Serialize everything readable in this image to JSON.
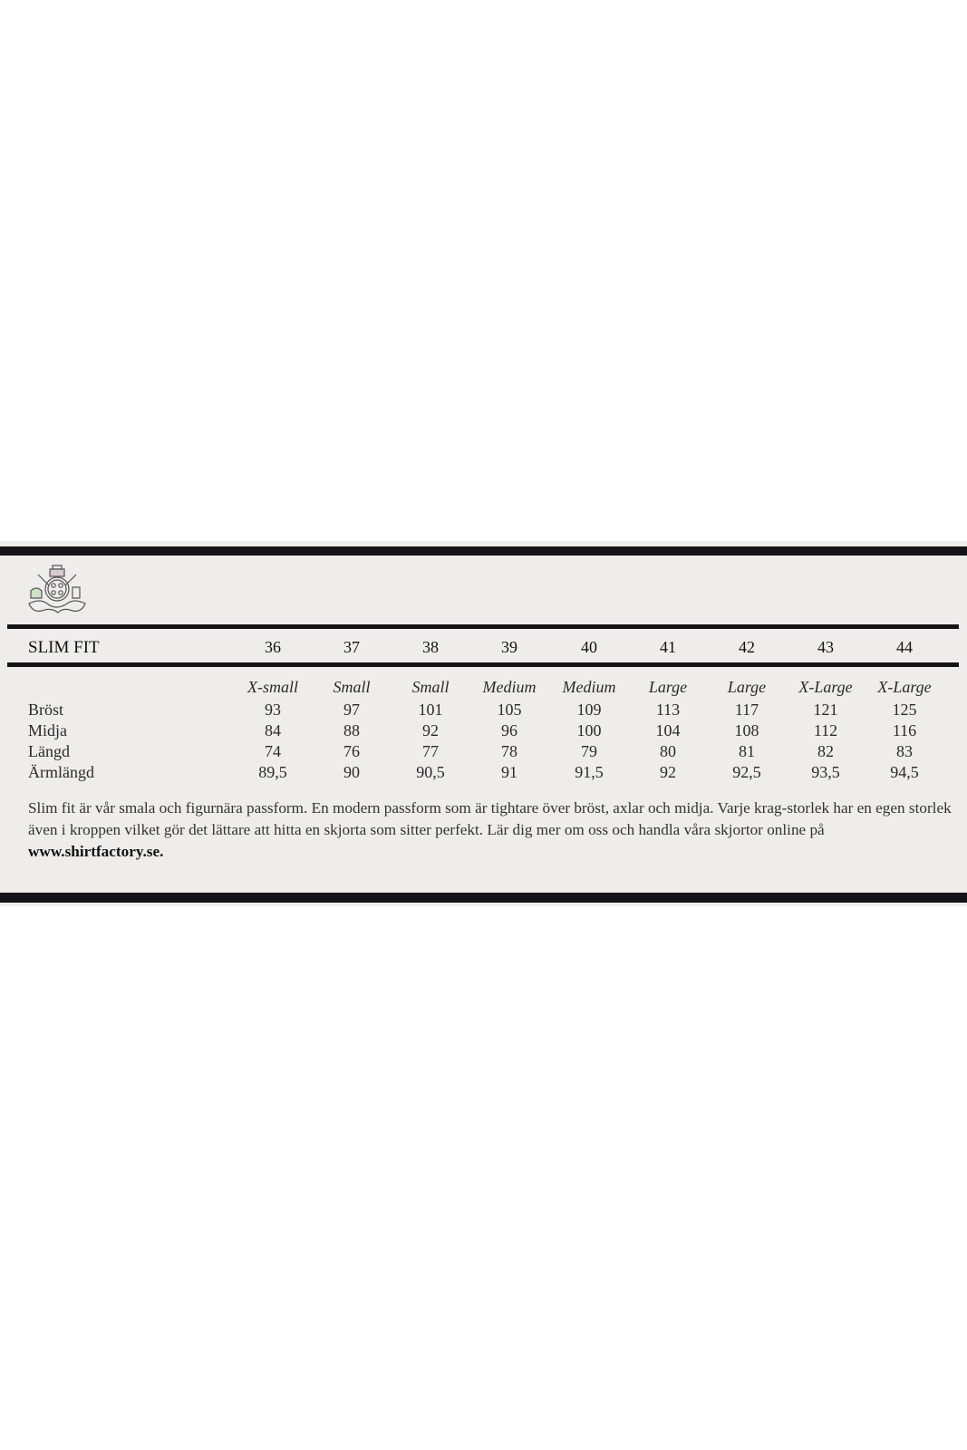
{
  "chart_data": {
    "type": "table",
    "title": "SLIM FIT",
    "columns": [
      "36",
      "37",
      "38",
      "39",
      "40",
      "41",
      "42",
      "43",
      "44"
    ],
    "size_names": [
      "X-small",
      "Small",
      "Small",
      "Medium",
      "Medium",
      "Large",
      "Large",
      "X-Large",
      "X-Large"
    ],
    "rows": [
      {
        "label": "Bröst",
        "values": [
          "93",
          "97",
          "101",
          "105",
          "109",
          "113",
          "117",
          "121",
          "125"
        ]
      },
      {
        "label": "Midja",
        "values": [
          "84",
          "88",
          "92",
          "96",
          "100",
          "104",
          "108",
          "112",
          "116"
        ]
      },
      {
        "label": "Längd",
        "values": [
          "74",
          "76",
          "77",
          "78",
          "79",
          "80",
          "81",
          "82",
          "83"
        ]
      },
      {
        "label": "Ärmlängd",
        "values": [
          "89,5",
          "90",
          "90,5",
          "91",
          "91,5",
          "92",
          "92,5",
          "93,5",
          "94,5"
        ]
      }
    ]
  },
  "description": {
    "text": "Slim fit är vår smala och figurnära passform. En modern passform som är tightare över bröst, axlar och midja. Varje krag-storlek har en egen storlek även i kroppen vilket gör det lättare att hitta en skjorta som sitter perfekt. Lär dig mer om oss och handla våra skjortor online på ",
    "link": "www.shirtfactory.se."
  },
  "logo": {
    "icon": "crest-logo-icon"
  },
  "colors": {
    "rule": "#141418",
    "background": "#efedeb"
  }
}
